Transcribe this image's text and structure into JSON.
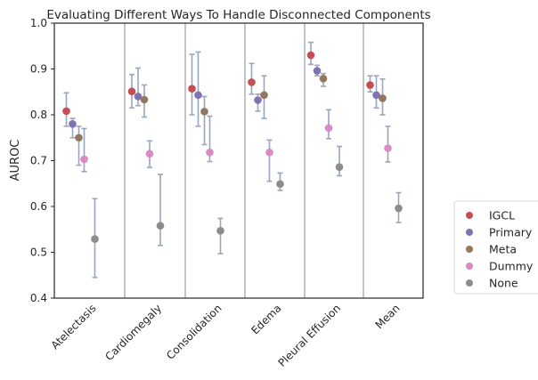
{
  "chart_data": {
    "type": "scatter",
    "title": "Evaluating Different Ways To Handle Disconnected Components",
    "xlabel": "",
    "ylabel": "AUROC",
    "ylim": [
      0.4,
      1.0
    ],
    "yticks": [
      "0.4",
      "0.5",
      "0.6",
      "0.7",
      "0.8",
      "0.9",
      "1.0"
    ],
    "ytick_values": [
      0.4,
      0.5,
      0.6,
      0.7,
      0.8,
      0.9,
      1.0
    ],
    "categories": [
      "Atelectasis",
      "Cardiomegaly",
      "Consolidation",
      "Edema",
      "Pleural Effusion",
      "Mean"
    ],
    "grid": false,
    "error_bar_color": "#9aa6bf",
    "legend_position": "right, outside plot",
    "series": [
      {
        "name": "IGCL",
        "color": "#c44e52",
        "values": [
          0.808,
          0.851,
          0.857,
          0.871,
          0.93,
          0.865
        ],
        "err_low": [
          0.775,
          0.815,
          0.8,
          0.845,
          0.91,
          0.85
        ],
        "err_high": [
          0.848,
          0.888,
          0.932,
          0.912,
          0.958,
          0.885
        ]
      },
      {
        "name": "Primary",
        "color": "#8172b3",
        "values": [
          0.78,
          0.84,
          0.843,
          0.832,
          0.896,
          0.843
        ],
        "err_low": [
          0.75,
          0.82,
          0.775,
          0.808,
          0.885,
          0.815
        ],
        "err_high": [
          0.792,
          0.902,
          0.937,
          0.845,
          0.908,
          0.885
        ]
      },
      {
        "name": "Meta",
        "color": "#937860",
        "values": [
          0.75,
          0.833,
          0.807,
          0.843,
          0.879,
          0.836
        ],
        "err_low": [
          0.69,
          0.795,
          0.735,
          0.792,
          0.862,
          0.8
        ],
        "err_high": [
          0.775,
          0.865,
          0.84,
          0.885,
          0.89,
          0.878
        ]
      },
      {
        "name": "Dummy",
        "color": "#da8bc3",
        "values": [
          0.703,
          0.715,
          0.718,
          0.718,
          0.771,
          0.727
        ],
        "err_low": [
          0.676,
          0.685,
          0.698,
          0.655,
          0.748,
          0.697
        ],
        "err_high": [
          0.77,
          0.743,
          0.797,
          0.745,
          0.811,
          0.775
        ]
      },
      {
        "name": "None",
        "color": "#8c8c8c",
        "values": [
          0.529,
          0.558,
          0.547,
          0.649,
          0.686,
          0.596
        ],
        "err_low": [
          0.445,
          0.515,
          0.497,
          0.635,
          0.667,
          0.565
        ],
        "err_high": [
          0.617,
          0.67,
          0.574,
          0.673,
          0.731,
          0.63
        ]
      }
    ]
  }
}
